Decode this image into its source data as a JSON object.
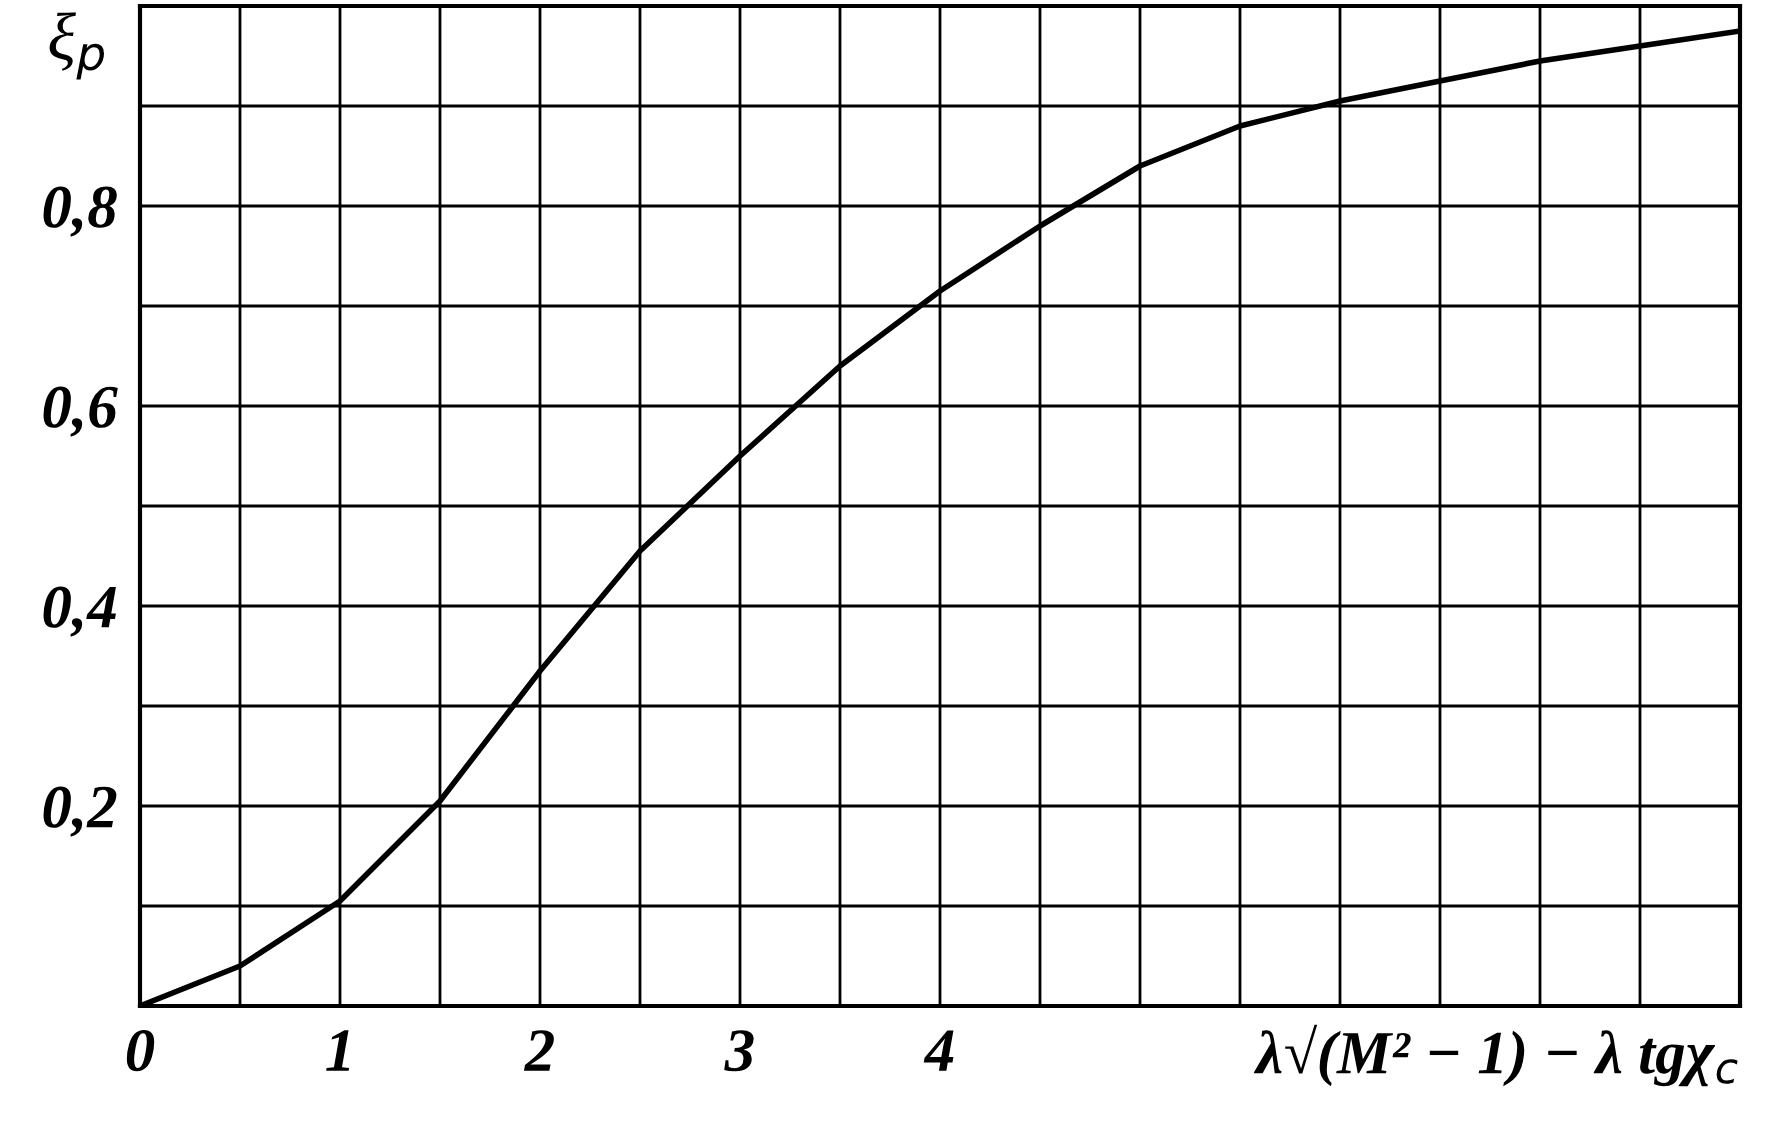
{
  "chart_data": {
    "type": "line",
    "xlabel": "λ√(M² − 1) − λ tgχ$_{c}$",
    "ylabel": "ξ$_{p}$",
    "x": [
      0,
      0.5,
      1,
      1.5,
      2,
      2.5,
      3,
      3.5,
      4,
      4.5,
      5,
      5.5,
      6,
      6.5,
      7,
      7.5,
      8
    ],
    "series": [
      {
        "color": "#000000",
        "values": [
          0,
          0.04,
          0.105,
          0.205,
          0.335,
          0.455,
          0.55,
          0.64,
          0.715,
          0.78,
          0.84,
          0.88,
          0.905,
          0.925,
          0.945,
          0.96,
          0.975
        ]
      }
    ],
    "xlim": [
      0,
      8
    ],
    "ylim": [
      0,
      1
    ],
    "xticks": [
      0,
      {
        "value": 0.5,
        "label": null
      },
      1,
      {
        "value": 1.5,
        "label": null
      },
      2,
      {
        "value": 2.5,
        "label": null
      },
      3,
      {
        "value": 3.5,
        "label": null
      },
      4,
      {
        "value": 4.5,
        "label": null
      },
      {
        "value": 5,
        "label": null
      },
      {
        "value": 5.5,
        "label": null
      },
      {
        "value": 6,
        "label": null
      },
      {
        "value": 6.5,
        "label": null
      },
      {
        "value": 7,
        "label": null
      },
      {
        "value": 7.5,
        "label": null
      },
      {
        "value": 8,
        "label": null
      }
    ],
    "yticks": [
      {
        "value": 0.1,
        "label": null
      },
      {
        "value": 0.2,
        "label": "0,2"
      },
      {
        "value": 0.3,
        "label": null
      },
      {
        "value": 0.4,
        "label": "0,4"
      },
      {
        "value": 0.5,
        "label": null
      },
      {
        "value": 0.6,
        "label": "0,6"
      },
      {
        "value": 0.7,
        "label": null
      },
      {
        "value": 0.8,
        "label": "0,8"
      },
      {
        "value": 0.9,
        "label": null
      },
      {
        "value": 1,
        "label": null
      }
    ],
    "grid": true,
    "marker": "none",
    "line_style": "solid"
  }
}
